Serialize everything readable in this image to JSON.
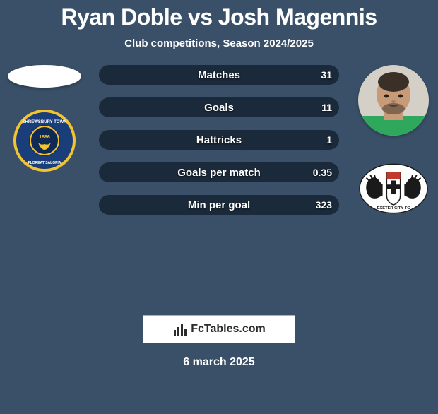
{
  "title": {
    "text": "Ryan Doble vs Josh Magennis",
    "fontsize": 32,
    "color": "#ffffff"
  },
  "subtitle": {
    "text": "Club competitions, Season 2024/2025",
    "fontsize": 15,
    "color": "#ffffff"
  },
  "background_color": "#3a5068",
  "player_left": {
    "name": "Ryan Doble",
    "club_primary": "#1a3e7a",
    "club_secondary": "#f4c330",
    "club_center": "#102a56"
  },
  "player_right": {
    "name": "Josh Magennis",
    "skin": "#c79b78",
    "shirt": "#2fa85e",
    "club_bg": "#ffffff",
    "club_shield": "#1a1a1a"
  },
  "bar_colors": {
    "left": "#b03a4a",
    "right": "#1a2a3a"
  },
  "bars": [
    {
      "label": "Matches",
      "left_val": "",
      "right_val": "31",
      "left_pct": 0,
      "right_pct": 100
    },
    {
      "label": "Goals",
      "left_val": "",
      "right_val": "11",
      "left_pct": 0,
      "right_pct": 100
    },
    {
      "label": "Hattricks",
      "left_val": "",
      "right_val": "1",
      "left_pct": 0,
      "right_pct": 100
    },
    {
      "label": "Goals per match",
      "left_val": "",
      "right_val": "0.35",
      "left_pct": 0,
      "right_pct": 100
    },
    {
      "label": "Min per goal",
      "left_val": "",
      "right_val": "323",
      "left_pct": 0,
      "right_pct": 100
    }
  ],
  "bar_style": {
    "height": 28,
    "radius": 14,
    "label_fontsize": 15,
    "value_fontsize": 14,
    "gap": 18,
    "text_color": "#ffffff"
  },
  "logo": {
    "text": "FcTables.com",
    "box_bg": "#ffffff",
    "box_border": "#b0b0b0",
    "text_color": "#2b2b2b",
    "fontsize": 16
  },
  "date": {
    "text": "6 march 2025",
    "fontsize": 16,
    "color": "#ffffff"
  }
}
